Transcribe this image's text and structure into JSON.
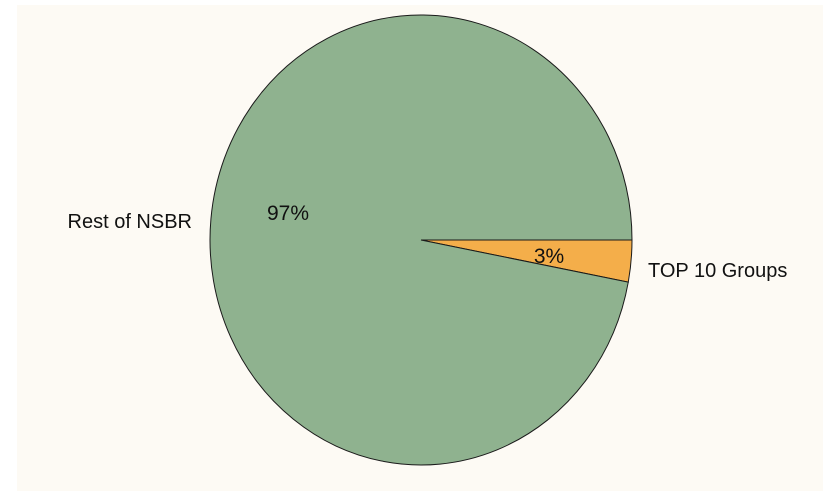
{
  "colors": {
    "background": "#fdfaf4",
    "outline": "#1a1a1a"
  },
  "chart_data": {
    "type": "pie",
    "slices": [
      {
        "label": "TOP 10 Groups",
        "percent_label": "3%",
        "value": 3,
        "color": "#f4ae4a"
      },
      {
        "label": "Rest of NSBR",
        "percent_label": "97%",
        "value": 97,
        "color": "#8fb28f"
      }
    ],
    "start_angle_deg": 0,
    "direction": "clockwise",
    "legend": "none"
  }
}
